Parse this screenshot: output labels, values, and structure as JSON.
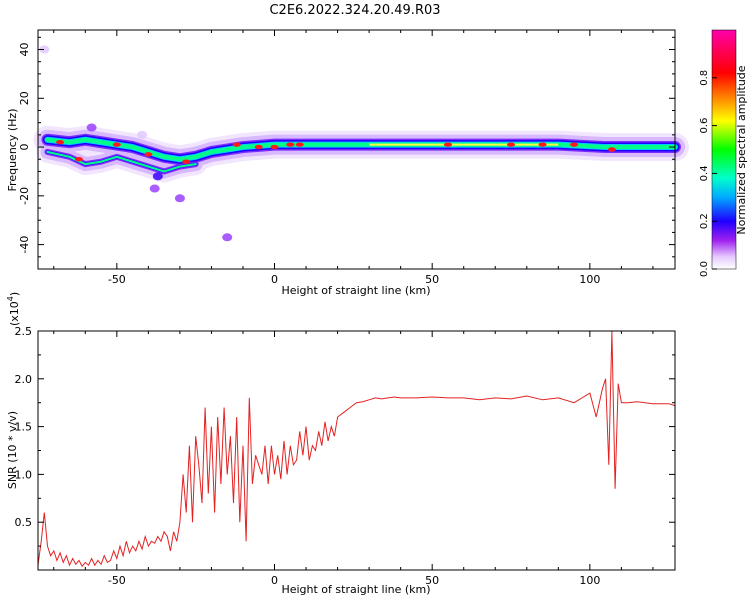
{
  "figure": {
    "title": "C2E6.2022.324.20.49.R03"
  },
  "chart_data": [
    {
      "type": "heatmap",
      "title": "C2E6.2022.324.20.49.R03",
      "xlabel": "Height of straight line (km)",
      "ylabel": "Frequency (Hz)",
      "xlim": [
        -75,
        127
      ],
      "ylim": [
        -50,
        48
      ],
      "xticks": [
        -50,
        0,
        50,
        100
      ],
      "yticks": [
        -40,
        -20,
        0,
        20,
        40
      ],
      "colorbar": {
        "label": "Normalized spectral amplitude",
        "range": [
          0,
          1
        ],
        "ticks": [
          0.0,
          0.2,
          0.4,
          0.6,
          0.8
        ],
        "colors": [
          "#ffffff",
          "#e6ccff",
          "#a020f0",
          "#1e00ff",
          "#00aaff",
          "#00ffcc",
          "#00ff00",
          "#ffff00",
          "#ff8000",
          "#ff0000",
          "#ff00aa"
        ]
      },
      "ridge": [
        {
          "x": -72,
          "y": 3
        },
        {
          "x": -65,
          "y": 2
        },
        {
          "x": -60,
          "y": 3
        },
        {
          "x": -55,
          "y": 2
        },
        {
          "x": -50,
          "y": 1
        },
        {
          "x": -45,
          "y": 0
        },
        {
          "x": -40,
          "y": -2
        },
        {
          "x": -35,
          "y": -4
        },
        {
          "x": -30,
          "y": -5
        },
        {
          "x": -25,
          "y": -4
        },
        {
          "x": -20,
          "y": -2
        },
        {
          "x": -15,
          "y": -1
        },
        {
          "x": -10,
          "y": 0
        },
        {
          "x": 0,
          "y": 1
        },
        {
          "x": 10,
          "y": 1
        },
        {
          "x": 30,
          "y": 1
        },
        {
          "x": 60,
          "y": 1
        },
        {
          "x": 90,
          "y": 1
        },
        {
          "x": 105,
          "y": 0
        },
        {
          "x": 110,
          "y": 0
        },
        {
          "x": 127,
          "y": 0
        }
      ],
      "lower_branch": [
        {
          "x": -72,
          "y": -2
        },
        {
          "x": -65,
          "y": -4
        },
        {
          "x": -60,
          "y": -7
        },
        {
          "x": -55,
          "y": -6
        },
        {
          "x": -50,
          "y": -4
        },
        {
          "x": -45,
          "y": -6
        },
        {
          "x": -40,
          "y": -8
        },
        {
          "x": -35,
          "y": -10
        },
        {
          "x": -30,
          "y": -8
        },
        {
          "x": -25,
          "y": -7
        }
      ],
      "scatter_blobs": [
        {
          "x": -37,
          "y": -12,
          "v": 0.3
        },
        {
          "x": -38,
          "y": -17,
          "v": 0.2
        },
        {
          "x": -30,
          "y": -21,
          "v": 0.15
        },
        {
          "x": -15,
          "y": -37,
          "v": 0.2
        },
        {
          "x": -73,
          "y": 40,
          "v": 0.05
        },
        {
          "x": -58,
          "y": 8,
          "v": 0.2
        },
        {
          "x": -42,
          "y": 5,
          "v": 0.1
        }
      ],
      "hotspots": [
        {
          "x": -68,
          "y": 2
        },
        {
          "x": -62,
          "y": -5
        },
        {
          "x": -50,
          "y": 1
        },
        {
          "x": -40,
          "y": -3
        },
        {
          "x": -28,
          "y": -6
        },
        {
          "x": -12,
          "y": 1
        },
        {
          "x": -5,
          "y": 0
        },
        {
          "x": 0,
          "y": 0
        },
        {
          "x": 5,
          "y": 1
        },
        {
          "x": 8,
          "y": 1
        },
        {
          "x": 55,
          "y": 1
        },
        {
          "x": 75,
          "y": 1
        },
        {
          "x": 85,
          "y": 1
        },
        {
          "x": 95,
          "y": 1
        },
        {
          "x": 107,
          "y": -1
        }
      ]
    },
    {
      "type": "line",
      "xlabel": "Height of straight line (km)",
      "ylabel": "SNR (10 * v/v)",
      "y_multiplier": "(x10",
      "y_multiplier_exp": "4",
      "xlim": [
        -75,
        127
      ],
      "ylim": [
        0,
        2.5
      ],
      "xticks": [
        -50,
        0,
        50,
        100
      ],
      "yticks": [
        0.5,
        1.0,
        1.5,
        2.0,
        2.5
      ],
      "series": [
        {
          "color": "#e32222",
          "x": [
            -75,
            -74,
            -73,
            -72,
            -71,
            -70,
            -69,
            -68,
            -67,
            -66,
            -65,
            -64,
            -63,
            -62,
            -61,
            -60,
            -59,
            -58,
            -57,
            -56,
            -55,
            -54,
            -53,
            -52,
            -51,
            -50,
            -49,
            -48,
            -47,
            -46,
            -45,
            -44,
            -43,
            -42,
            -41,
            -40,
            -39,
            -38,
            -37,
            -36,
            -35,
            -34,
            -33,
            -32,
            -31,
            -30,
            -29,
            -28,
            -27,
            -26,
            -25,
            -24,
            -23,
            -22,
            -21,
            -20,
            -19,
            -18,
            -17,
            -16,
            -15,
            -14,
            -13,
            -12,
            -11,
            -10,
            -9,
            -8,
            -7,
            -6,
            -5,
            -4,
            -3,
            -2,
            -1,
            0,
            1,
            2,
            3,
            4,
            5,
            6,
            7,
            8,
            9,
            10,
            11,
            12,
            13,
            14,
            15,
            16,
            17,
            18,
            19,
            20,
            22,
            24,
            26,
            28,
            30,
            32,
            34,
            36,
            38,
            40,
            45,
            50,
            55,
            60,
            65,
            70,
            75,
            80,
            85,
            90,
            95,
            100,
            102,
            104,
            105,
            106,
            107,
            108,
            109,
            110,
            112,
            115,
            120,
            125,
            127
          ],
          "y": [
            0.05,
            0.3,
            0.6,
            0.25,
            0.15,
            0.2,
            0.1,
            0.18,
            0.08,
            0.15,
            0.05,
            0.12,
            0.06,
            0.1,
            0.04,
            0.08,
            0.05,
            0.12,
            0.05,
            0.1,
            0.06,
            0.15,
            0.08,
            0.1,
            0.2,
            0.12,
            0.25,
            0.15,
            0.3,
            0.18,
            0.25,
            0.2,
            0.3,
            0.22,
            0.35,
            0.25,
            0.3,
            0.28,
            0.35,
            0.3,
            0.4,
            0.35,
            0.2,
            0.4,
            0.3,
            0.5,
            1.0,
            0.6,
            1.3,
            0.5,
            1.4,
            1.1,
            0.7,
            1.7,
            0.8,
            1.5,
            0.6,
            1.6,
            0.9,
            1.7,
            1.0,
            1.4,
            0.7,
            1.6,
            0.5,
            1.3,
            0.3,
            1.8,
            0.9,
            1.2,
            1.1,
            1.0,
            1.3,
            0.9,
            1.3,
            1.0,
            1.2,
            0.95,
            1.35,
            1.0,
            1.3,
            1.1,
            1.15,
            1.45,
            1.2,
            1.5,
            1.15,
            1.3,
            1.25,
            1.45,
            1.3,
            1.55,
            1.35,
            1.5,
            1.4,
            1.6,
            1.65,
            1.7,
            1.75,
            1.76,
            1.78,
            1.8,
            1.79,
            1.8,
            1.81,
            1.8,
            1.8,
            1.81,
            1.8,
            1.8,
            1.78,
            1.8,
            1.79,
            1.82,
            1.78,
            1.8,
            1.75,
            1.85,
            1.6,
            1.9,
            2.0,
            1.1,
            2.5,
            0.85,
            1.95,
            1.75,
            1.75,
            1.76,
            1.74,
            1.74,
            1.72
          ]
        }
      ]
    }
  ]
}
